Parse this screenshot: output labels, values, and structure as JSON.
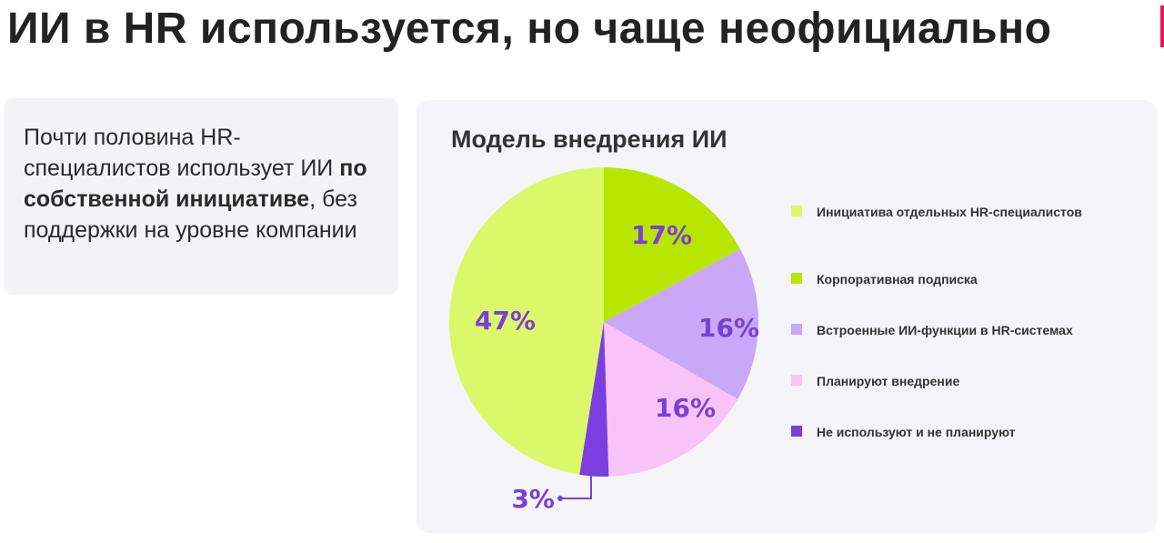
{
  "page": {
    "title": "ИИ в HR используется, но чаще неофициально",
    "accent_color": "#e8145c"
  },
  "text_card": {
    "part1": "Почти половина HR-специалистов использует ИИ ",
    "bold": "по собственной инициативе",
    "part2": ", без поддержки на уровне компании"
  },
  "chart_data": {
    "type": "pie",
    "title": "Модель внедрения ИИ",
    "start": "12 o'clock, clockwise",
    "slices": [
      {
        "label": "Корпоративная подписка",
        "value": 17,
        "display": "17%",
        "color": "#b8e600",
        "text_color": "#7a3fd6"
      },
      {
        "label": "Встроенные ИИ-функции в HR-системах",
        "value": 16,
        "display": "16%",
        "color": "#c9a8f7",
        "text_color": "#7a3fd6"
      },
      {
        "label": "Планируют внедрение",
        "value": 16,
        "display": "16%",
        "color": "#f8c3f8",
        "text_color": "#7a3fd6"
      },
      {
        "label": "Не используют и не планируют",
        "value": 3,
        "display": "3%",
        "color": "#7b3fe0",
        "text_color": "#7a3fd6"
      },
      {
        "label": "Инициатива отдельных HR-специалистов",
        "value": 47,
        "display": "47%",
        "color": "#ddf76a",
        "text_color": "#7a3fd6"
      }
    ],
    "legend": [
      {
        "label": "Инициатива отдельных HR-специалистов",
        "color": "#ddf76a"
      },
      {
        "label": "Корпоративная подписка",
        "color": "#b8e600"
      },
      {
        "label": "Встроенные ИИ-функции в HR-системах",
        "color": "#c9a8f7"
      },
      {
        "label": "Планируют внедрение",
        "color": "#f8c3f8"
      },
      {
        "label": "Не используют и не планируют",
        "color": "#7b3fe0"
      }
    ]
  }
}
